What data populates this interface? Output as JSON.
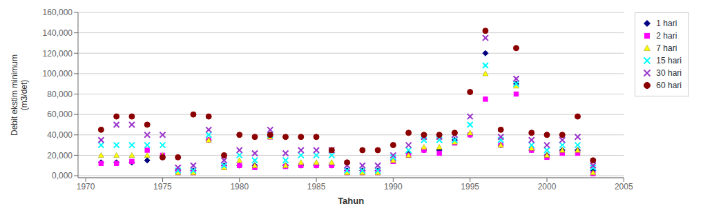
{
  "chart_data": {
    "type": "scatter",
    "xlabel": "Tahun",
    "ylabel": "Debit ekstim minimum\n(m3/det)",
    "xlim": [
      1969.5,
      2005
    ],
    "ylim": [
      -2000,
      160000
    ],
    "xticks": [
      1970,
      1975,
      1980,
      1985,
      1990,
      1995,
      2000,
      2005
    ],
    "yticks": [
      {
        "value": 0,
        "label": "0,000"
      },
      {
        "value": 20000,
        "label": "20,000"
      },
      {
        "value": 40000,
        "label": "40,000"
      },
      {
        "value": 60000,
        "label": "60,000"
      },
      {
        "value": 80000,
        "label": "80,000"
      },
      {
        "value": 100000,
        "label": "100,000"
      },
      {
        "value": 120000,
        "label": "120,000"
      },
      {
        "value": 140000,
        "label": "140,000"
      },
      {
        "value": 160000,
        "label": "160,000"
      }
    ],
    "grid": true,
    "legend": "right",
    "x": [
      1971,
      1972,
      1973,
      1974,
      1975,
      1976,
      1977,
      1978,
      1979,
      1980,
      1981,
      1982,
      1983,
      1984,
      1985,
      1986,
      1987,
      1988,
      1989,
      1990,
      1991,
      1992,
      1993,
      1994,
      1995,
      1996,
      1997,
      1998,
      1999,
      2000,
      2001,
      2002,
      2003
    ],
    "series": [
      {
        "name": "1 hari",
        "color": "#000080",
        "marker": "diamond",
        "values": [
          13000,
          13000,
          13000,
          15000,
          18000,
          5000,
          5000,
          35000,
          10000,
          10000,
          10000,
          40000,
          10000,
          10000,
          10000,
          10000,
          5000,
          5000,
          5000,
          15000,
          22000,
          25000,
          25000,
          35000,
          40000,
          120000,
          30000,
          90000,
          25000,
          20000,
          25000,
          25000,
          5000
        ]
      },
      {
        "name": "2 hari",
        "color": "#FF00FF",
        "marker": "square",
        "values": [
          12000,
          12000,
          14000,
          25000,
          20000,
          3000,
          3000,
          35000,
          8000,
          10000,
          8000,
          38000,
          9000,
          10000,
          10000,
          10000,
          3000,
          3000,
          3000,
          14000,
          20000,
          25000,
          22000,
          32000,
          40000,
          75000,
          30000,
          80000,
          25000,
          18000,
          22000,
          22000,
          2000
        ]
      },
      {
        "name": "7 hari",
        "color": "#FFFF00",
        "marker": "triangle",
        "values": [
          20000,
          20000,
          20000,
          20000,
          20000,
          3000,
          3000,
          35000,
          8000,
          15000,
          10000,
          38000,
          10000,
          13000,
          13000,
          13000,
          3000,
          3000,
          3000,
          15000,
          20000,
          28000,
          28000,
          33000,
          42000,
          100000,
          30000,
          88000,
          27000,
          20000,
          25000,
          25000,
          3000
        ]
      },
      {
        "name": "15 hari",
        "color": "#00FFFF",
        "marker": "x",
        "values": [
          30000,
          30000,
          30000,
          30000,
          30000,
          5000,
          5000,
          40000,
          10000,
          20000,
          15000,
          40000,
          15000,
          20000,
          20000,
          20000,
          5000,
          5000,
          5000,
          18000,
          25000,
          35000,
          35000,
          35000,
          50000,
          108000,
          35000,
          90000,
          30000,
          25000,
          30000,
          30000,
          8000
        ]
      },
      {
        "name": "30 hari",
        "color": "#9933CC",
        "marker": "x",
        "values": [
          35000,
          50000,
          50000,
          40000,
          40000,
          8000,
          10000,
          45000,
          15000,
          25000,
          22000,
          45000,
          22000,
          25000,
          25000,
          25000,
          10000,
          10000,
          10000,
          20000,
          30000,
          38000,
          38000,
          40000,
          58000,
          135000,
          38000,
          95000,
          35000,
          30000,
          35000,
          38000,
          10000
        ]
      },
      {
        "name": "60 hari",
        "color": "#8B0000",
        "marker": "circle",
        "values": [
          45000,
          58000,
          58000,
          50000,
          18000,
          18000,
          60000,
          58000,
          20000,
          40000,
          38000,
          40000,
          38000,
          38000,
          38000,
          25000,
          13000,
          25000,
          25000,
          30000,
          42000,
          40000,
          40000,
          42000,
          82000,
          142000,
          45000,
          125000,
          42000,
          40000,
          40000,
          58000,
          15000
        ]
      }
    ]
  }
}
